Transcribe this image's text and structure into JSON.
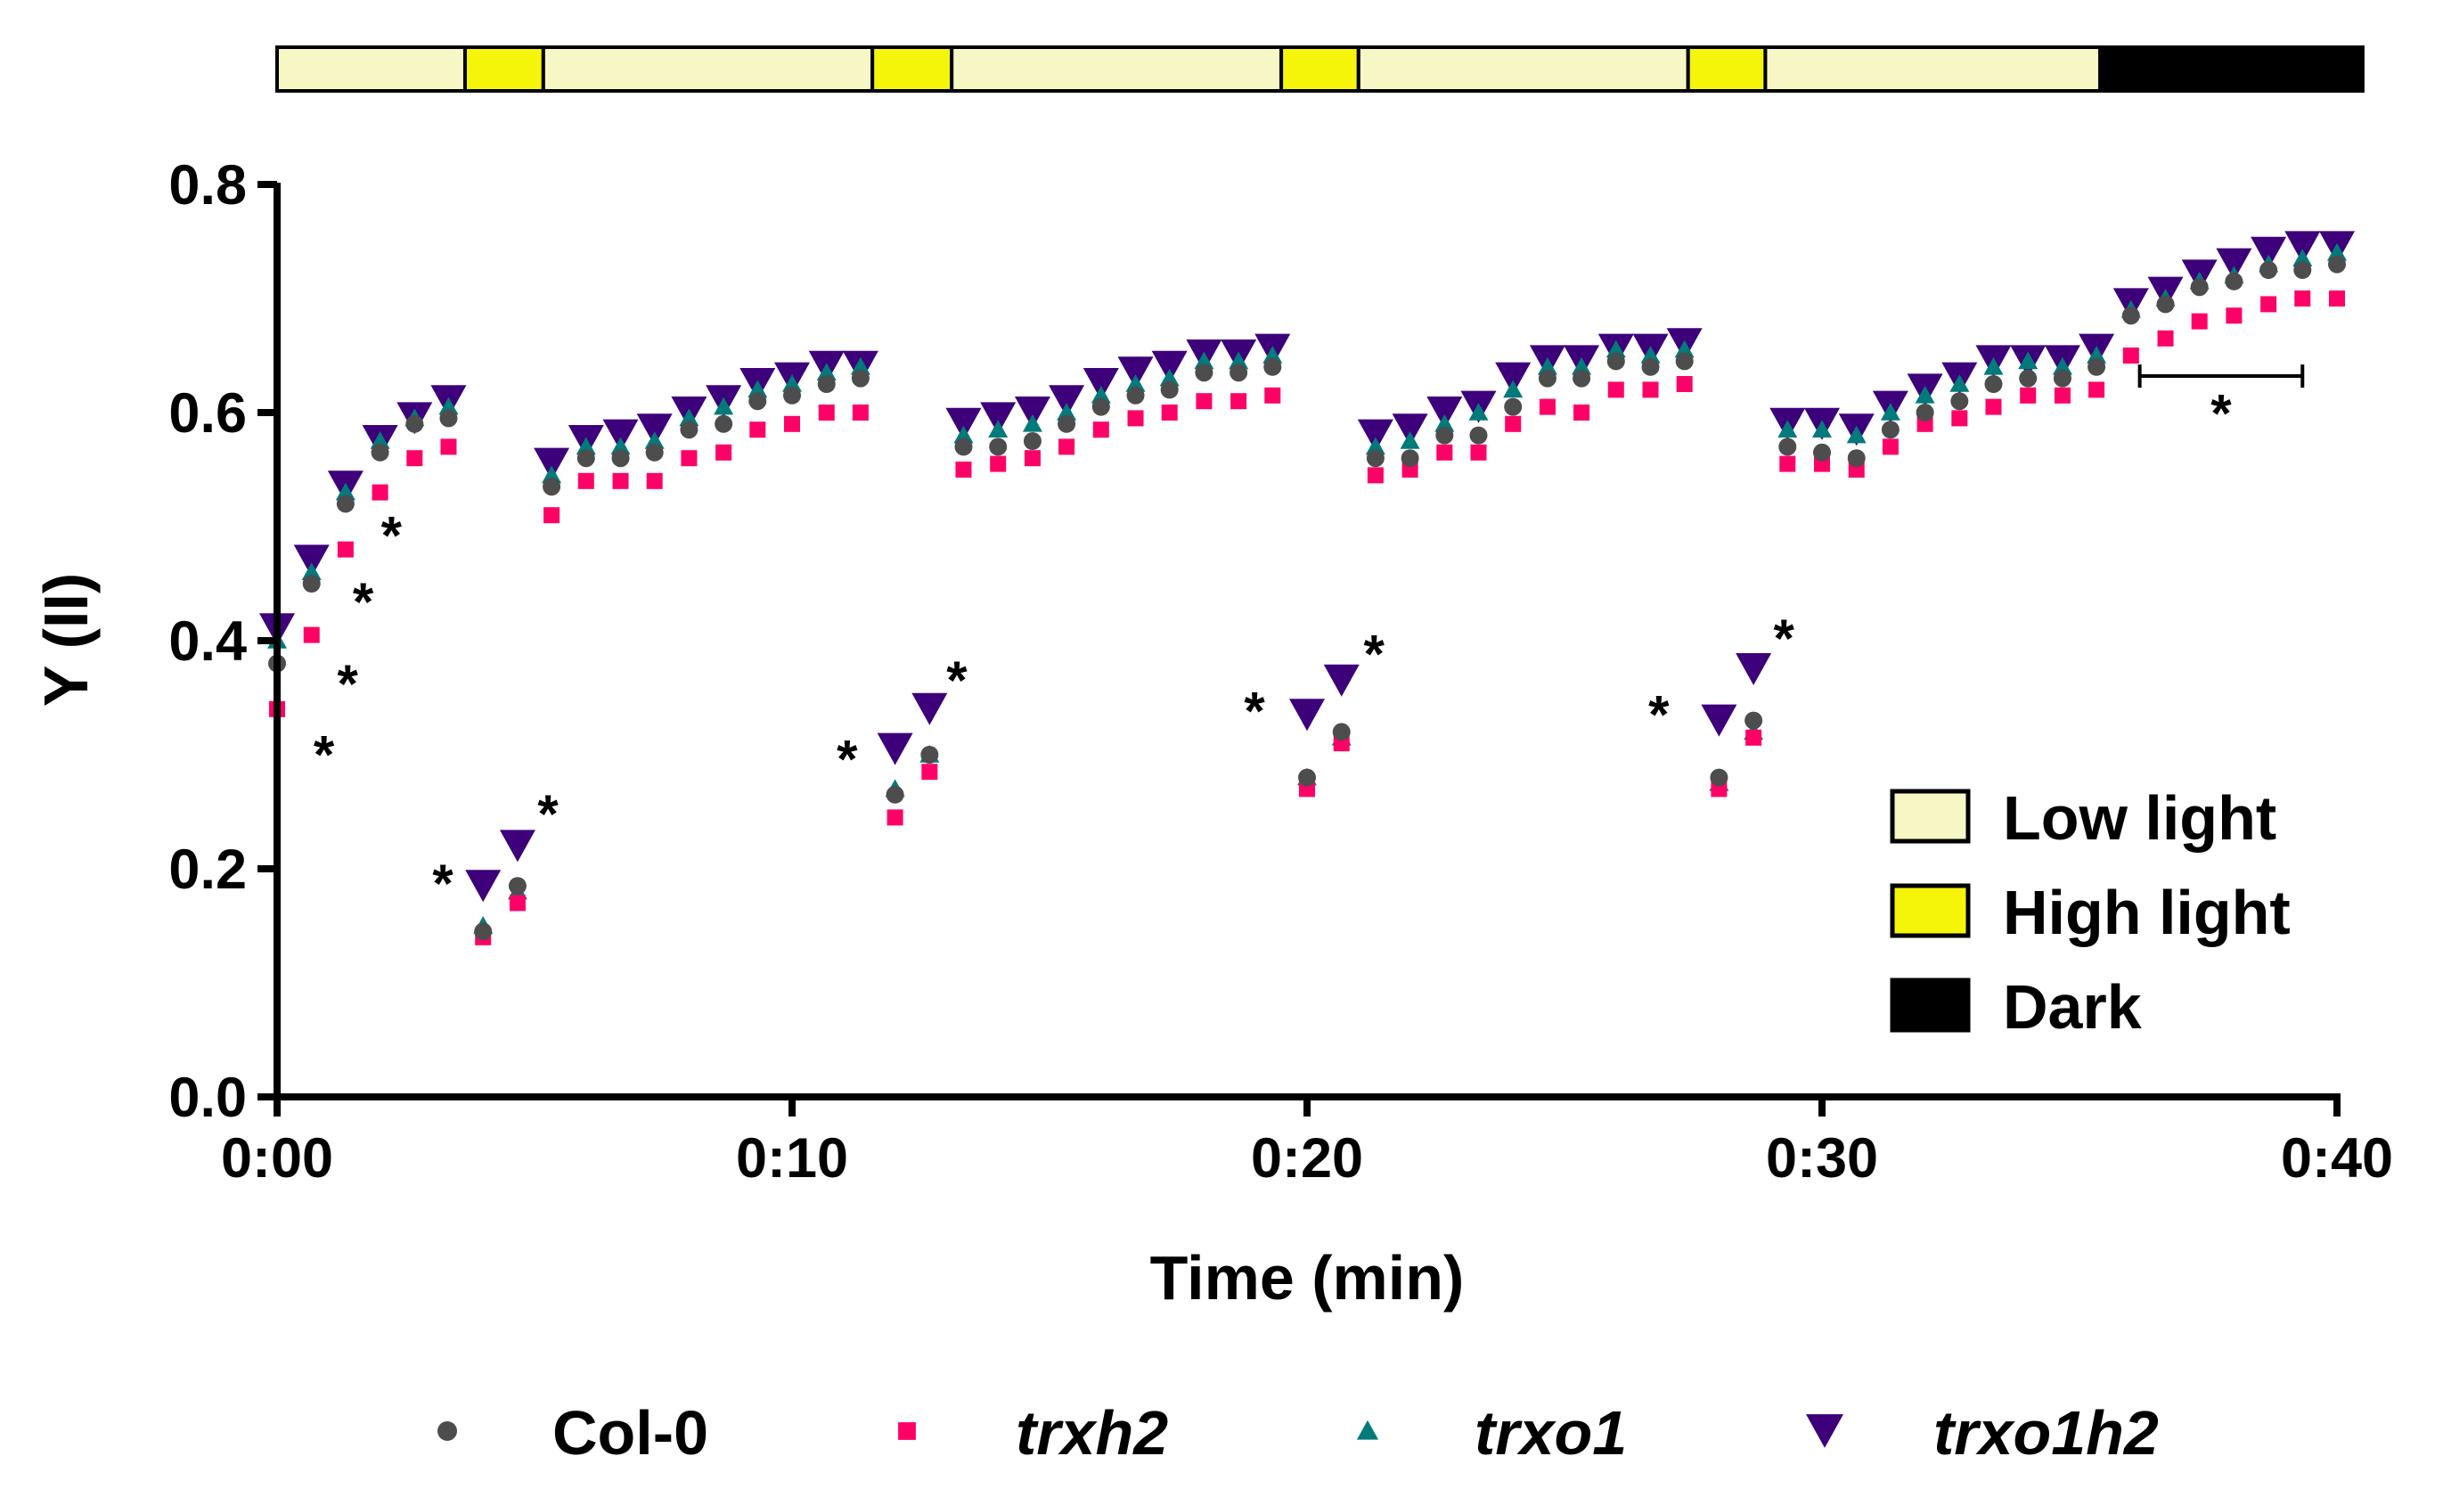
{
  "chart_data": {
    "type": "scatter",
    "title": "",
    "xlabel": "Time (min)",
    "ylabel": "Y (II)",
    "xlim": [
      0,
      40
    ],
    "ylim": [
      0,
      0.8
    ],
    "x_ticks": [
      "0:00",
      "0:10",
      "0:20",
      "0:30",
      "0:40"
    ],
    "x_tick_values": [
      0,
      10,
      20,
      30,
      40
    ],
    "y_ticks": [
      "0.0",
      "0.2",
      "0.4",
      "0.6",
      "0.8"
    ],
    "y_tick_values": [
      0,
      0.2,
      0.4,
      0.6,
      0.8
    ],
    "grid": false,
    "x": [
      0,
      0.67,
      1.33,
      2,
      2.67,
      3.33,
      4,
      4.67,
      5.33,
      6,
      6.67,
      7.33,
      8,
      8.67,
      9.33,
      10,
      10.67,
      11.33,
      12,
      12.67,
      13.33,
      14,
      14.67,
      15.33,
      16,
      16.67,
      17.33,
      18,
      18.67,
      19.33,
      20,
      20.67,
      21.33,
      22,
      22.67,
      23.33,
      24,
      24.67,
      25.33,
      26,
      26.67,
      27.33,
      28,
      28.67,
      29.33,
      30,
      30.67,
      31.33,
      32,
      32.67,
      33.33,
      34,
      34.67,
      35.33,
      36,
      36.67,
      37.33,
      38,
      38.67,
      39.33,
      40
    ],
    "series": [
      {
        "name": "Col-0",
        "marker": "circle",
        "color": "#4d4d4d",
        "italic": false,
        "values": [
          0.38,
          0.45,
          0.52,
          0.565,
          0.59,
          0.595,
          0.145,
          0.185,
          0.535,
          0.56,
          0.56,
          0.565,
          0.585,
          0.59,
          0.61,
          0.615,
          0.625,
          0.63,
          0.265,
          0.3,
          0.57,
          0.57,
          0.575,
          0.59,
          0.605,
          0.615,
          0.62,
          0.635,
          0.635,
          0.64,
          0.28,
          0.32,
          0.56,
          0.56,
          0.58,
          0.58,
          0.605,
          0.63,
          0.63,
          0.645,
          0.64,
          0.645,
          0.28,
          0.33,
          0.57,
          0.565,
          0.56,
          0.585,
          0.6,
          0.61,
          0.625,
          0.63,
          0.63,
          0.64,
          0.685,
          0.695,
          0.71,
          0.715,
          0.725,
          0.725,
          0.73
        ]
      },
      {
        "name": "trxh2",
        "marker": "square",
        "color": "#ff0066",
        "italic": true,
        "values": [
          0.34,
          0.405,
          0.48,
          0.53,
          0.56,
          0.57,
          0.14,
          0.17,
          0.51,
          0.54,
          0.54,
          0.54,
          0.56,
          0.565,
          0.585,
          0.59,
          0.6,
          0.6,
          0.245,
          0.285,
          0.55,
          0.555,
          0.56,
          0.57,
          0.585,
          0.595,
          0.6,
          0.61,
          0.61,
          0.615,
          0.27,
          0.31,
          0.545,
          0.55,
          0.565,
          0.565,
          0.59,
          0.605,
          0.6,
          0.62,
          0.62,
          0.625,
          0.27,
          0.315,
          0.555,
          0.555,
          0.55,
          0.57,
          0.59,
          0.595,
          0.605,
          0.615,
          0.615,
          0.62,
          0.65,
          0.665,
          0.68,
          0.685,
          0.695,
          0.7,
          0.7
        ]
      },
      {
        "name": "trxo1",
        "marker": "triangle-up",
        "color": "#007a7a",
        "italic": true,
        "values": [
          0.4,
          0.46,
          0.53,
          0.575,
          0.595,
          0.605,
          0.15,
          0.18,
          0.545,
          0.57,
          0.57,
          0.575,
          0.595,
          0.605,
          0.62,
          0.625,
          0.635,
          0.64,
          0.27,
          0.3,
          0.58,
          0.585,
          0.59,
          0.6,
          0.615,
          0.625,
          0.63,
          0.645,
          0.645,
          0.65,
          0.28,
          0.315,
          0.57,
          0.575,
          0.59,
          0.6,
          0.62,
          0.64,
          0.64,
          0.655,
          0.65,
          0.655,
          0.275,
          0.32,
          0.585,
          0.585,
          0.58,
          0.6,
          0.615,
          0.625,
          0.64,
          0.645,
          0.64,
          0.65,
          0.69,
          0.7,
          0.715,
          0.72,
          0.73,
          0.735,
          0.74
        ]
      },
      {
        "name": "trxo1h2",
        "marker": "triangle-down",
        "color": "#3d007a",
        "italic": true,
        "values": [
          0.41,
          0.47,
          0.535,
          0.575,
          0.595,
          0.61,
          0.185,
          0.22,
          0.555,
          0.575,
          0.58,
          0.585,
          0.6,
          0.61,
          0.625,
          0.63,
          0.64,
          0.64,
          0.305,
          0.34,
          0.59,
          0.595,
          0.6,
          0.61,
          0.625,
          0.635,
          0.64,
          0.65,
          0.65,
          0.655,
          0.335,
          0.365,
          0.58,
          0.585,
          0.6,
          0.605,
          0.63,
          0.645,
          0.645,
          0.655,
          0.655,
          0.66,
          0.33,
          0.375,
          0.59,
          0.59,
          0.585,
          0.605,
          0.62,
          0.63,
          0.645,
          0.645,
          0.645,
          0.655,
          0.695,
          0.705,
          0.72,
          0.73,
          0.74,
          0.745,
          0.745
        ]
      }
    ],
    "annotations": [
      {
        "text": "*",
        "x": 0.91,
        "y": 0.306
      },
      {
        "text": "*",
        "x": 1.37,
        "y": 0.368
      },
      {
        "text": "*",
        "x": 1.67,
        "y": 0.44
      },
      {
        "text": "*",
        "x": 2.22,
        "y": 0.498
      },
      {
        "text": "*",
        "x": 3.22,
        "y": 0.193
      },
      {
        "text": "*",
        "x": 5.26,
        "y": 0.254
      },
      {
        "text": "*",
        "x": 11.07,
        "y": 0.302
      },
      {
        "text": "*",
        "x": 13.2,
        "y": 0.371
      },
      {
        "text": "*",
        "x": 18.98,
        "y": 0.344
      },
      {
        "text": "*",
        "x": 21.3,
        "y": 0.394
      },
      {
        "text": "*",
        "x": 26.83,
        "y": 0.341
      },
      {
        "text": "*",
        "x": 29.26,
        "y": 0.408
      },
      {
        "text": "*",
        "x": 37.75,
        "y": 0.605
      }
    ],
    "significance_bracket": {
      "x_start": 36.17,
      "x_end": 39.33,
      "y": 0.632
    },
    "light_regime": [
      {
        "condition": "low",
        "start": 0,
        "end": 3.65
      },
      {
        "condition": "high",
        "start": 3.65,
        "end": 5.17
      },
      {
        "condition": "low",
        "start": 5.17,
        "end": 11.56
      },
      {
        "condition": "high",
        "start": 11.56,
        "end": 13.1
      },
      {
        "condition": "low",
        "start": 13.1,
        "end": 19.5
      },
      {
        "condition": "high",
        "start": 19.5,
        "end": 21.0
      },
      {
        "condition": "low",
        "start": 21.0,
        "end": 27.4
      },
      {
        "condition": "high",
        "start": 27.4,
        "end": 28.9
      },
      {
        "condition": "low",
        "start": 28.9,
        "end": 35.4
      },
      {
        "condition": "dark",
        "start": 35.4,
        "end": 40.5
      }
    ],
    "light_legend": [
      {
        "key": "low",
        "label": "Low light",
        "color": "#f7f7c6"
      },
      {
        "key": "high",
        "label": "High light",
        "color": "#f5f50a"
      },
      {
        "key": "dark",
        "label": "Dark",
        "color": "#000000"
      }
    ],
    "legend_placement": "bottom"
  }
}
